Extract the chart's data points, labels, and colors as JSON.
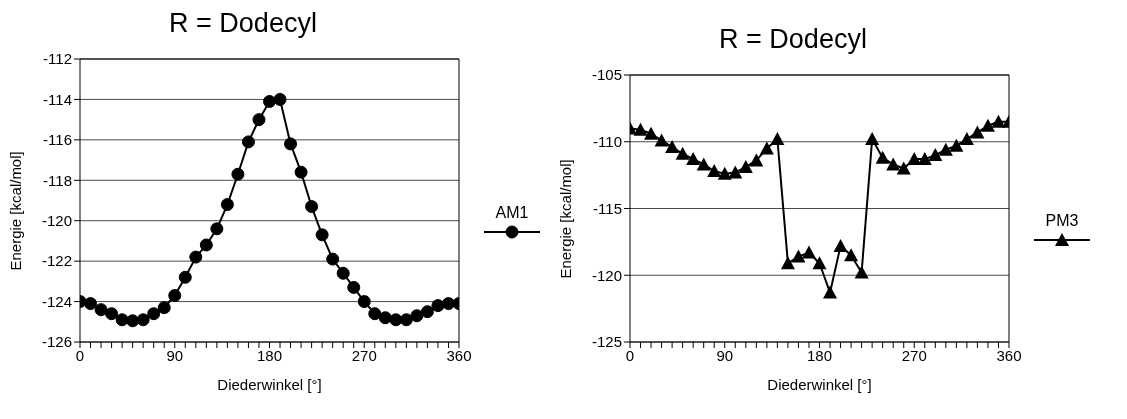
{
  "chart_data": [
    {
      "type": "line",
      "title": "R = Dodecyl",
      "xlabel": "Diederwinkel [°]",
      "ylabel": "Energie [kcal/mol]",
      "marker": "circle",
      "grid": "y",
      "legend": "right",
      "x": [
        0,
        10,
        20,
        30,
        40,
        50,
        60,
        70,
        80,
        90,
        100,
        110,
        120,
        130,
        140,
        150,
        160,
        170,
        180,
        190,
        200,
        210,
        220,
        230,
        240,
        250,
        260,
        270,
        280,
        290,
        300,
        310,
        320,
        330,
        340,
        350,
        360
      ],
      "series": [
        {
          "name": "AM1",
          "color": "#000000",
          "values": [
            -124.0,
            -124.1,
            -124.4,
            -124.6,
            -124.9,
            -124.95,
            -124.9,
            -124.6,
            -124.3,
            -123.7,
            -122.8,
            -121.8,
            -121.2,
            -120.4,
            -119.2,
            -117.7,
            -116.1,
            -115.0,
            -114.1,
            -114.0,
            -116.2,
            -117.6,
            -119.3,
            -120.7,
            -121.9,
            -122.6,
            -123.3,
            -124.0,
            -124.6,
            -124.8,
            -124.9,
            -124.9,
            -124.7,
            -124.5,
            -124.2,
            -124.1,
            -124.1
          ]
        }
      ],
      "xlim": [
        0,
        360
      ],
      "xticks": [
        0,
        {
          "value": 10,
          "label": null
        },
        {
          "value": 20,
          "label": null
        },
        {
          "value": 30,
          "label": null
        },
        {
          "value": 40,
          "label": null
        },
        {
          "value": 50,
          "label": null
        },
        {
          "value": 60,
          "label": null
        },
        {
          "value": 70,
          "label": null
        },
        {
          "value": 80,
          "label": null
        },
        90,
        {
          "value": 100,
          "label": null
        },
        {
          "value": 110,
          "label": null
        },
        {
          "value": 120,
          "label": null
        },
        {
          "value": 130,
          "label": null
        },
        {
          "value": 140,
          "label": null
        },
        {
          "value": 150,
          "label": null
        },
        {
          "value": 160,
          "label": null
        },
        {
          "value": 170,
          "label": null
        },
        180,
        {
          "value": 190,
          "label": null
        },
        {
          "value": 200,
          "label": null
        },
        {
          "value": 210,
          "label": null
        },
        {
          "value": 220,
          "label": null
        },
        {
          "value": 230,
          "label": null
        },
        {
          "value": 240,
          "label": null
        },
        {
          "value": 250,
          "label": null
        },
        {
          "value": 260,
          "label": null
        },
        270,
        {
          "value": 280,
          "label": null
        },
        {
          "value": 290,
          "label": null
        },
        {
          "value": 300,
          "label": null
        },
        {
          "value": 310,
          "label": null
        },
        {
          "value": 320,
          "label": null
        },
        {
          "value": 330,
          "label": null
        },
        {
          "value": 340,
          "label": null
        },
        {
          "value": 350,
          "label": null
        },
        360
      ],
      "ylim": [
        -126,
        -112
      ],
      "yticks": [
        -126,
        -124,
        -122,
        -120,
        -118,
        -116,
        -114,
        -112
      ]
    },
    {
      "type": "line",
      "title": "R = Dodecyl",
      "xlabel": "Diederwinkel [°]",
      "ylabel": "Energie [kcal/mol]",
      "marker": "triangle",
      "grid": "y",
      "legend": "right",
      "x": [
        0,
        10,
        20,
        30,
        40,
        50,
        60,
        70,
        80,
        90,
        100,
        110,
        120,
        130,
        140,
        150,
        160,
        170,
        180,
        190,
        200,
        210,
        220,
        230,
        240,
        250,
        260,
        270,
        280,
        290,
        300,
        310,
        320,
        330,
        340,
        350,
        360
      ],
      "series": [
        {
          "name": "PM3",
          "color": "#000000",
          "values": [
            -109.0,
            -109.1,
            -109.4,
            -109.9,
            -110.4,
            -110.9,
            -111.3,
            -111.7,
            -112.2,
            -112.4,
            -112.3,
            -111.9,
            -111.4,
            -110.5,
            -109.8,
            -119.1,
            -118.6,
            -118.3,
            -119.1,
            -121.3,
            -117.8,
            -118.5,
            -119.8,
            -109.8,
            -111.2,
            -111.7,
            -112.0,
            -111.3,
            -111.3,
            -111.0,
            -110.6,
            -110.3,
            -109.8,
            -109.3,
            -108.8,
            -108.5,
            -108.5
          ]
        }
      ],
      "xlim": [
        0,
        360
      ],
      "xticks": [
        0,
        {
          "value": 10,
          "label": null
        },
        {
          "value": 20,
          "label": null
        },
        {
          "value": 30,
          "label": null
        },
        {
          "value": 40,
          "label": null
        },
        {
          "value": 50,
          "label": null
        },
        {
          "value": 60,
          "label": null
        },
        {
          "value": 70,
          "label": null
        },
        {
          "value": 80,
          "label": null
        },
        90,
        {
          "value": 100,
          "label": null
        },
        {
          "value": 110,
          "label": null
        },
        {
          "value": 120,
          "label": null
        },
        {
          "value": 130,
          "label": null
        },
        {
          "value": 140,
          "label": null
        },
        {
          "value": 150,
          "label": null
        },
        {
          "value": 160,
          "label": null
        },
        {
          "value": 170,
          "label": null
        },
        180,
        {
          "value": 190,
          "label": null
        },
        {
          "value": 200,
          "label": null
        },
        {
          "value": 210,
          "label": null
        },
        {
          "value": 220,
          "label": null
        },
        {
          "value": 230,
          "label": null
        },
        {
          "value": 240,
          "label": null
        },
        {
          "value": 250,
          "label": null
        },
        {
          "value": 260,
          "label": null
        },
        270,
        {
          "value": 280,
          "label": null
        },
        {
          "value": 290,
          "label": null
        },
        {
          "value": 300,
          "label": null
        },
        {
          "value": 310,
          "label": null
        },
        {
          "value": 320,
          "label": null
        },
        {
          "value": 330,
          "label": null
        },
        {
          "value": 340,
          "label": null
        },
        {
          "value": 350,
          "label": null
        },
        360
      ],
      "ylim": [
        -125,
        -105
      ],
      "yticks": [
        -125,
        -120,
        -115,
        -110,
        -105
      ]
    }
  ]
}
